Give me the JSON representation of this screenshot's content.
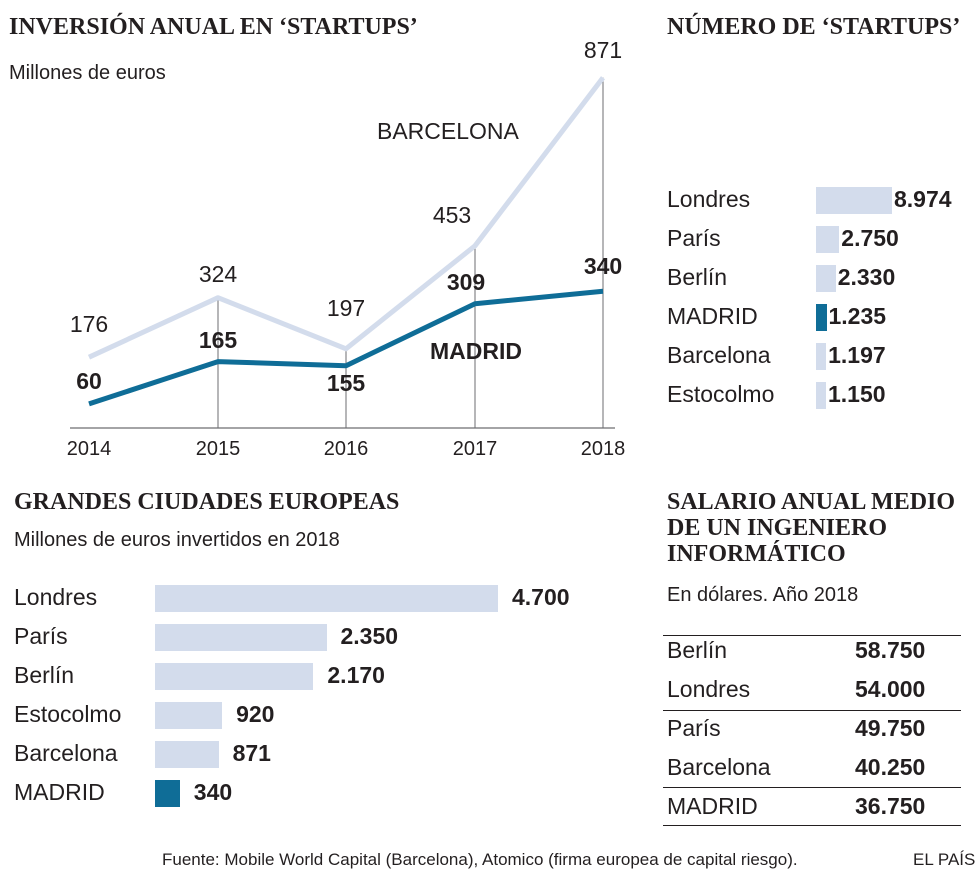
{
  "colors": {
    "light": "#d3dcec",
    "dark": "#0f6d97",
    "grid": "#6d6e71",
    "text": "#231f20"
  },
  "chart_data": [
    {
      "type": "line",
      "title": "INVERSIÓN ANUAL EN ‘STARTUPS’",
      "subtitle": "Millones de euros",
      "categories": [
        "2014",
        "2015",
        "2016",
        "2017",
        "2018"
      ],
      "ylim": [
        0,
        900
      ],
      "series": [
        {
          "name": "BARCELONA",
          "values": [
            176,
            324,
            197,
            453,
            871
          ]
        },
        {
          "name": "MADRID",
          "values": [
            60,
            165,
            155,
            309,
            340
          ]
        }
      ]
    },
    {
      "type": "bar",
      "title": "NÚMERO DE ‘STARTUPS’",
      "categories": [
        "Londres",
        "París",
        "Berlín",
        "MADRID",
        "Barcelona",
        "Estocolmo"
      ],
      "values": [
        8974,
        2750,
        2330,
        1235,
        1197,
        1150
      ],
      "value_labels": [
        "8.974",
        "2.750",
        "2.330",
        "1.235",
        "1.197",
        "1.150"
      ],
      "highlight": "MADRID"
    },
    {
      "type": "bar",
      "title": "GRANDES CIUDADES EUROPEAS",
      "subtitle": "Millones de euros invertidos en 2018",
      "categories": [
        "Londres",
        "París",
        "Berlín",
        "Estocolmo",
        "Barcelona",
        "MADRID"
      ],
      "values": [
        4700,
        2350,
        2170,
        920,
        871,
        340
      ],
      "value_labels": [
        "4.700",
        "2.350",
        "2.170",
        "920",
        "871",
        "340"
      ],
      "highlight": "MADRID"
    },
    {
      "type": "table",
      "title": "SALARIO ANUAL MEDIO DE UN INGENIERO INFORMÁTICO",
      "subtitle": "En dólares. Año 2018",
      "rows": [
        {
          "city": "Berlín",
          "value": "58.750"
        },
        {
          "city": "Londres",
          "value": "54.000"
        },
        {
          "city": "París",
          "value": "49.750"
        },
        {
          "city": "Barcelona",
          "value": "40.250"
        },
        {
          "city": "MADRID",
          "value": "36.750"
        }
      ]
    }
  ],
  "footer": {
    "source": "Fuente: Mobile World Capital (Barcelona), Atomico (firma europea de capital riesgo).",
    "credit": "EL PAÍS"
  }
}
